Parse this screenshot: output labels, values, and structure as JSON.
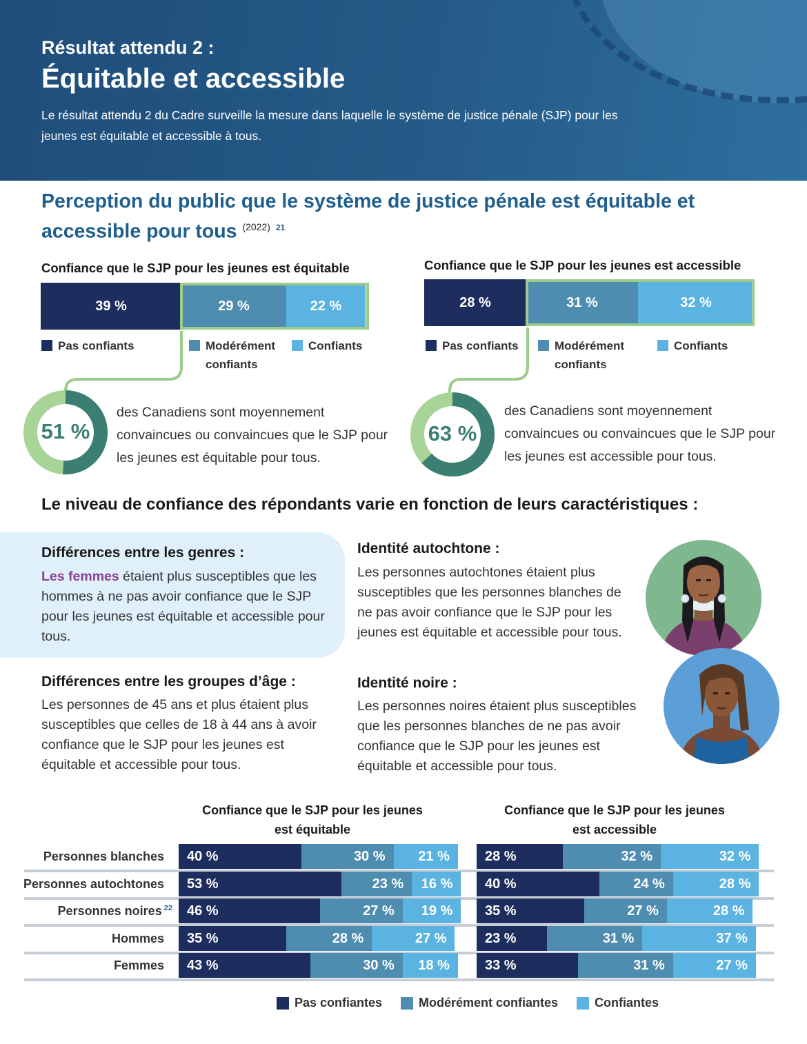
{
  "header": {
    "kicker": "Résultat attendu 2 :",
    "title": "Équitable et accessible",
    "description": "Le résultat attendu 2 du Cadre surveille la mesure dans laquelle le système de justice pénale (SJP) pour les jeunes est équitable et accessible à tous."
  },
  "section": {
    "title": "Perception du public que le système de justice pénale est équitable et accessible pour tous",
    "year": "(2022)",
    "footnote": "21"
  },
  "colors": {
    "dark": "#1c2d5e",
    "mid": "#4e8db0",
    "light": "#5ab3e0",
    "green": "#9ccc8a",
    "teal": "#3b7f72"
  },
  "top_charts": [
    {
      "title": "Confiance que le SJP pour les jeunes est équitable",
      "values": [
        "39 %",
        "29 %",
        "22 %"
      ],
      "legend": [
        "Pas confiants",
        "Modérément confiants",
        "Confiants"
      ],
      "donut_value": "51 %",
      "donut_fraction": 0.51,
      "callout": "des Canadiens sont moyennement convaincues ou convaincues que le SJP pour les jeunes est équitable pour tous."
    },
    {
      "title": "Confiance que le SJP pour les jeunes est accessible",
      "values": [
        "28 %",
        "31 %",
        "32 %"
      ],
      "legend": [
        "Pas confiants",
        "Modérément confiants",
        "Confiants"
      ],
      "donut_value": "63 %",
      "donut_fraction": 0.63,
      "callout": "des Canadiens sont moyennement convaincues ou convaincues que le SJP pour les jeunes est accessible pour tous."
    }
  ],
  "characteristics": {
    "heading": "Le niveau de confiance des répondants varie en fonction de leurs caractéristiques :",
    "gender": {
      "title": "Différences entre les genres :",
      "highlight": "Les femmes",
      "text": " étaient plus susceptibles que les hommes à ne pas avoir confiance que le SJP pour les jeunes est équitable et accessible pour tous."
    },
    "age": {
      "title": "Différences entre les groupes d’âge :",
      "text": "Les personnes de 45 ans et plus étaient plus susceptibles que celles de 18 à 44 ans à avoir confiance que le SJP pour les jeunes est équitable et accessible pour tous."
    },
    "indigenous": {
      "title": "Identité autochtone :",
      "text": "Les personnes autochtones étaient plus susceptibles que les personnes blanches de ne pas avoir confiance que le SJP pour les jeunes est équitable et accessible pour tous."
    },
    "black": {
      "title": "Identité noire :",
      "text": "Les personnes noires étaient plus susceptibles que les personnes blanches de ne pas avoir confiance que le SJP pour les jeunes est équitable et accessible pour tous."
    }
  },
  "chart_data": {
    "type": "bar",
    "stacked": true,
    "orientation": "horizontal",
    "panels": [
      {
        "title": "Confiance que le SJP pour les jeunes est équitable"
      },
      {
        "title": "Confiance que le SJP pour les jeunes est accessible"
      }
    ],
    "categories": [
      "Personnes blanches",
      "Personnes autochtones",
      "Personnes noires",
      "Hommes",
      "Femmes"
    ],
    "category_footnotes": [
      "",
      "",
      "22",
      "",
      ""
    ],
    "series": [
      {
        "name": "Pas confiantes",
        "equitable": [
          40,
          53,
          46,
          35,
          43
        ],
        "accessible": [
          28,
          40,
          35,
          23,
          33
        ]
      },
      {
        "name": "Modérément confiantes",
        "equitable": [
          30,
          23,
          27,
          28,
          30
        ],
        "accessible": [
          32,
          24,
          27,
          31,
          31
        ]
      },
      {
        "name": "Confiantes",
        "equitable": [
          21,
          16,
          19,
          27,
          18
        ],
        "accessible": [
          32,
          28,
          28,
          37,
          27
        ]
      }
    ],
    "value_suffix": " %",
    "legend_position": "bottom"
  }
}
